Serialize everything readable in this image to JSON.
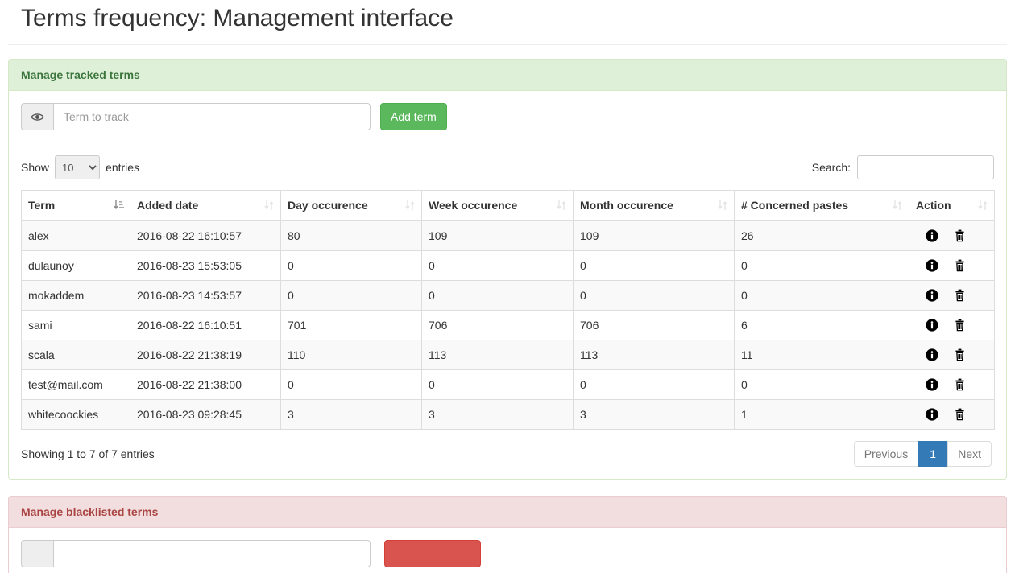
{
  "page": {
    "title": "Terms frequency: Management interface"
  },
  "tracked": {
    "title": "Manage tracked terms",
    "input_placeholder": "Term to track",
    "add_button": "Add term",
    "length": {
      "show_label": "Show",
      "value": "10",
      "entries_label": "entries"
    },
    "search_label": "Search:",
    "table": {
      "columns": [
        "Term",
        "Added date",
        "Day occurence",
        "Week occurence",
        "Month occurence",
        "# Concerned pastes",
        "Action"
      ],
      "rows": [
        {
          "term": "alex",
          "added": "2016-08-22 16:10:57",
          "day": "80",
          "week": "109",
          "month": "109",
          "pastes": "26"
        },
        {
          "term": "dulaunoy",
          "added": "2016-08-23 15:53:05",
          "day": "0",
          "week": "0",
          "month": "0",
          "pastes": "0"
        },
        {
          "term": "mokaddem",
          "added": "2016-08-23 14:53:57",
          "day": "0",
          "week": "0",
          "month": "0",
          "pastes": "0"
        },
        {
          "term": "sami",
          "added": "2016-08-22 16:10:51",
          "day": "701",
          "week": "706",
          "month": "706",
          "pastes": "6"
        },
        {
          "term": "scala",
          "added": "2016-08-22 21:38:19",
          "day": "110",
          "week": "113",
          "month": "113",
          "pastes": "11"
        },
        {
          "term": "test@mail.com",
          "added": "2016-08-22 21:38:00",
          "day": "0",
          "week": "0",
          "month": "0",
          "pastes": "0"
        },
        {
          "term": "whitecoockies",
          "added": "2016-08-23 09:28:45",
          "day": "3",
          "week": "3",
          "month": "3",
          "pastes": "1"
        }
      ]
    },
    "footer": {
      "info": "Showing 1 to 7 of 7 entries",
      "previous": "Previous",
      "page": "1",
      "next": "Next"
    }
  },
  "blacklist": {
    "title": "Manage blacklisted terms"
  },
  "colors": {
    "success": "#5cb85c",
    "danger": "#d9534f",
    "active_page": "#337ab7",
    "success_heading": "#dff0d8",
    "danger_heading": "#f2dede"
  }
}
